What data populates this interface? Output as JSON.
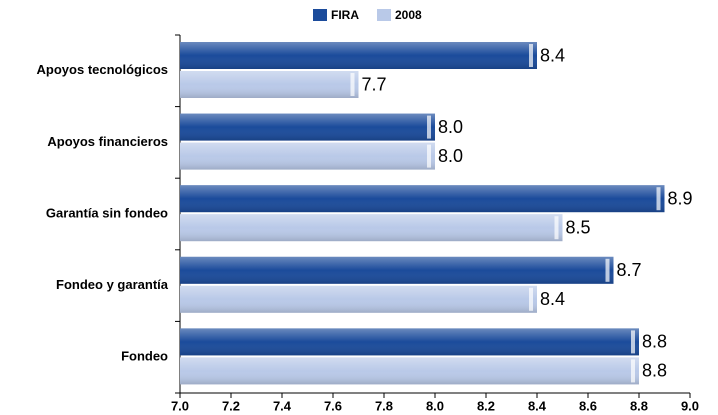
{
  "chart_data": {
    "type": "hbar",
    "categories": [
      "Apoyos tecnológicos",
      "Apoyos financieros",
      "Garantía sin fondeo",
      "Fondeo y garantía",
      "Fondeo"
    ],
    "series": [
      {
        "name": "FIRA",
        "color": "#1b4b9b",
        "values": [
          8.4,
          8.0,
          8.9,
          8.7,
          8.8
        ],
        "value_labels": [
          "8.4",
          "8.0",
          "8.9",
          "8.7",
          "8.8"
        ]
      },
      {
        "name": "2008",
        "color": "#b9c9e8",
        "values": [
          7.7,
          8.0,
          8.5,
          8.4,
          8.8
        ],
        "value_labels": [
          "7.7",
          "8.0",
          "8.5",
          "8.4",
          "8.8"
        ]
      }
    ],
    "xlim": [
      7.0,
      9.0
    ],
    "xticks": [
      {
        "value": 7.0,
        "label": "7.0"
      },
      7.2,
      7.4,
      7.6,
      7.8,
      {
        "value": 8.0,
        "label": "8.0"
      },
      8.2,
      8.4,
      8.6,
      8.8,
      {
        "value": 9.0,
        "label": "9.0"
      }
    ],
    "legend": "top"
  }
}
